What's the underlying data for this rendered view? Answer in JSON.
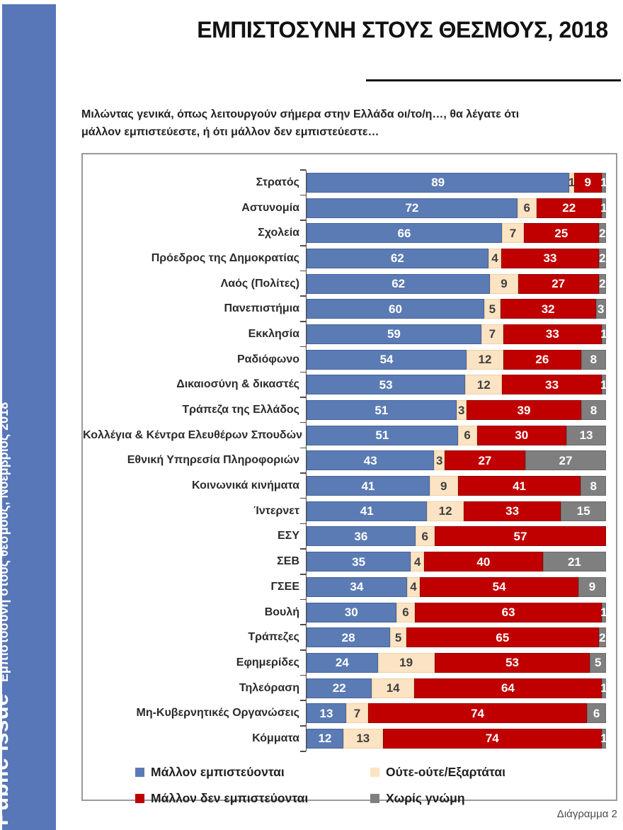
{
  "sidebar": {
    "brand": "Public Issue",
    "caption": "Εμπιστοσύνη στους θεσμούς, Νοέμβριος 2018",
    "bg": "#5877B8"
  },
  "header": {
    "title": "ΕΜΠΙΣΤΟΣΥΝΗ ΣΤΟΥΣ ΘΕΣΜΟΥΣ, 2018",
    "question": "Μιλώντας γενικά, όπως λειτουργούν σήμερα στην Ελλάδα οι/το/η…, θα λέγατε ότι μάλλον εμπιστεύεστε, ή ότι μάλλον δεν εμπιστεύεστε…"
  },
  "footer": {
    "caption": "Διάγραμμα 2"
  },
  "chart_data": {
    "type": "bar",
    "orientation": "horizontal",
    "stacked": true,
    "units": "percent",
    "xlim": [
      0,
      100
    ],
    "grid": false,
    "legend_position": "bottom",
    "title": "ΕΜΠΙΣΤΟΣΥΝΗ ΣΤΟΥΣ ΘΕΣΜΟΥΣ, 2018",
    "categories": [
      "Στρατός",
      "Αστυνομία",
      "Σχολεία",
      "Πρόεδρος της Δημοκρατίας",
      "Λαός (Πολίτες)",
      "Πανεπιστήμια",
      "Εκκλησία",
      "Ραδιόφωνο",
      "Δικαιοσύνη & δικαστές",
      "Τράπεζα της Ελλάδος",
      "Κολλέγια & Κέντρα Ελευθέρων Σπουδών",
      "Εθνική Υπηρεσία Πληροφοριών",
      "Κοινωνικά κινήματα",
      "Ίντερνετ",
      "ΕΣΥ",
      "ΣΕΒ",
      "ΓΣΕΕ",
      "Βουλή",
      "Τράπεζες",
      "Εφημερίδες",
      "Τηλεόραση",
      "Μη-Κυβερνητικές Οργανώσεις",
      "Κόμματα"
    ],
    "series": [
      {
        "key": "trust",
        "name": "Μάλλον εμπιστεύονται",
        "color": "#5B7BB4",
        "border": "#47639C",
        "label_color": "#FFFFFF",
        "values": [
          89,
          72,
          66,
          62,
          62,
          60,
          59,
          54,
          53,
          51,
          51,
          43,
          41,
          41,
          36,
          35,
          34,
          30,
          28,
          24,
          22,
          13,
          12
        ]
      },
      {
        "key": "neither",
        "name": "Ούτε-ούτε/Εξαρτάται",
        "color": "#FBE3C3",
        "border": "#EDD0A4",
        "label_color": "#3F3F3F",
        "values": [
          1,
          6,
          7,
          4,
          9,
          5,
          7,
          12,
          12,
          3,
          6,
          3,
          9,
          12,
          6,
          4,
          4,
          6,
          5,
          19,
          14,
          7,
          13
        ]
      },
      {
        "key": "distrust",
        "name": "Μάλλον δεν εμπιστεύονται",
        "color": "#C00000",
        "border": "#950000",
        "label_color": "#FFFFFF",
        "values": [
          9,
          22,
          25,
          33,
          27,
          32,
          33,
          26,
          33,
          39,
          30,
          27,
          41,
          33,
          57,
          40,
          54,
          63,
          65,
          53,
          64,
          74,
          74
        ]
      },
      {
        "key": "no_opinion",
        "name": "Χωρίς γνώμη",
        "color": "#7F7F7F",
        "border": "#6A6A6A",
        "label_color": "#FFFFFF",
        "values": [
          1,
          1,
          2,
          2,
          2,
          3,
          1,
          8,
          1,
          8,
          13,
          27,
          8,
          15,
          0,
          21,
          9,
          1,
          2,
          5,
          1,
          6,
          1
        ]
      }
    ]
  }
}
